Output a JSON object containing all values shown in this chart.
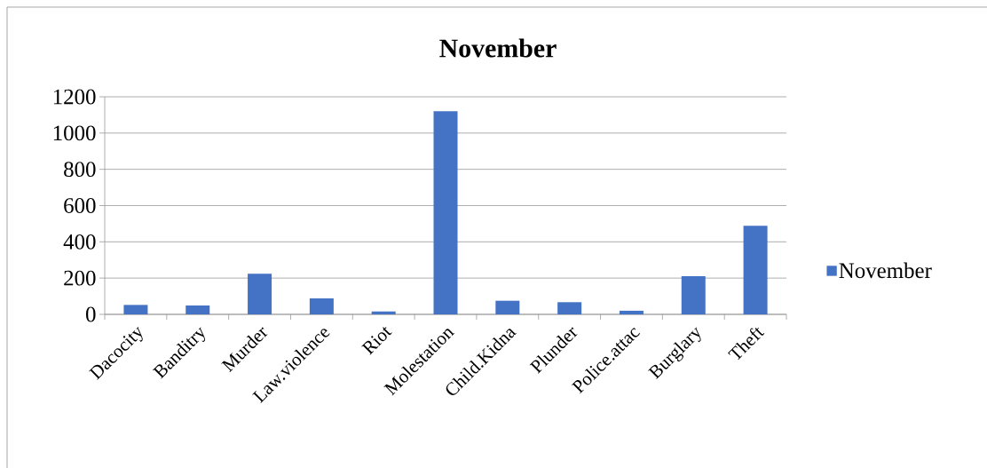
{
  "chart_data": {
    "type": "bar",
    "title": "November",
    "categories": [
      "Dacocity",
      "Banditry",
      "Murder",
      "Law.violence",
      "Riot",
      "Molestation",
      "Child.Kidna",
      "Plunder",
      "Police.attac",
      "Burglary",
      "Theft"
    ],
    "series": [
      {
        "name": "November",
        "color": "#4472c4",
        "values": [
          52,
          49,
          224,
          88,
          16,
          1120,
          75,
          67,
          20,
          211,
          488
        ]
      }
    ],
    "ylim": [
      0,
      1200
    ],
    "yticks": [
      0,
      200,
      400,
      600,
      800,
      1000,
      1200
    ],
    "grid": "y",
    "legend": "right"
  }
}
